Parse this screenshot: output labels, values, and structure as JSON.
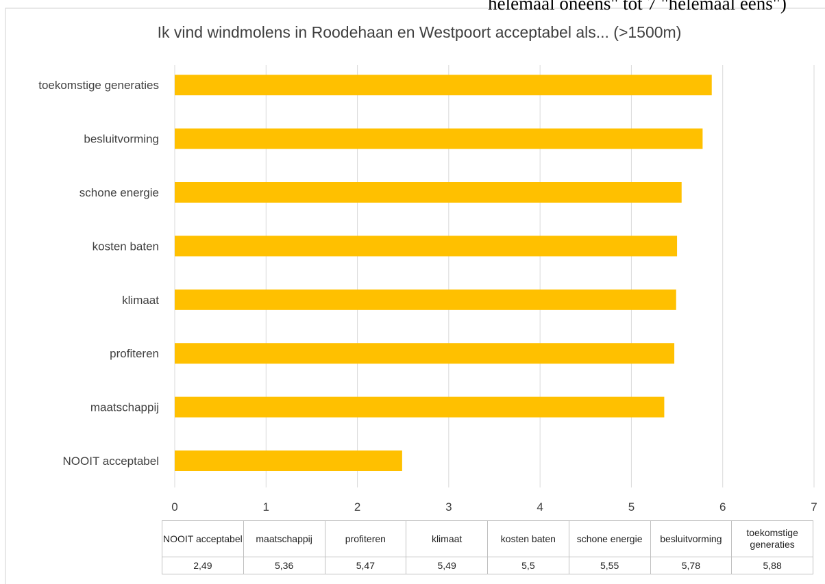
{
  "chart_data": {
    "type": "bar",
    "orientation": "horizontal",
    "note": "helemaal oneens\" tot 7 \"helemaal eens\")",
    "title": "Ik vind windmolens in Roodehaan en Westpoort acceptabel als... (>1500m)",
    "categories": [
      "NOOIT acceptabel",
      "maatschappij",
      "profiteren",
      "klimaat",
      "kosten baten",
      "schone energie",
      "besluitvorming",
      "toekomstige generaties"
    ],
    "values": [
      2.49,
      5.36,
      5.47,
      5.49,
      5.5,
      5.55,
      5.78,
      5.88
    ],
    "value_labels": [
      "2,49",
      "5,36",
      "5,47",
      "5,49",
      "5,5",
      "5,55",
      "5,78",
      "5,88"
    ],
    "color": "#ffc000",
    "xlim": [
      0,
      7
    ],
    "xticks": [
      0,
      1,
      2,
      3,
      4,
      5,
      6,
      7
    ],
    "grid": true
  }
}
